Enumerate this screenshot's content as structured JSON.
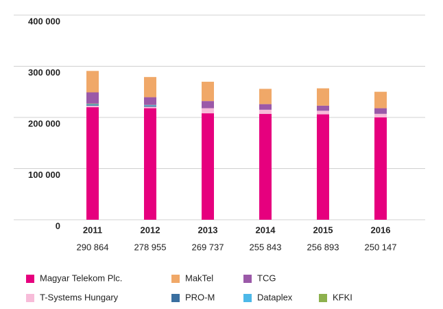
{
  "chart_data": {
    "type": "stacked-bar",
    "categories": [
      "2011",
      "2012",
      "2013",
      "2014",
      "2015",
      "2016"
    ],
    "total_labels": [
      "290 864",
      "278 955",
      "269 737",
      "255 843",
      "256 893",
      "250 147"
    ],
    "series": [
      {
        "name": "Magyar Telekom Plc.",
        "color": "#e6007e",
        "values": [
          220000,
          218000,
          208000,
          207000,
          206000,
          200000
        ]
      },
      {
        "name": "T-Systems Hungary",
        "color": "#f7bcd9",
        "values": [
          3000,
          3000,
          10000,
          8000,
          7000,
          7000
        ]
      },
      {
        "name": "PRO-M",
        "color": "#3a6fa0",
        "values": [
          2000,
          2000,
          0,
          0,
          0,
          0
        ]
      },
      {
        "name": "Dataplex",
        "color": "#4db8e8",
        "values": [
          1000,
          1000,
          0,
          0,
          0,
          0
        ]
      },
      {
        "name": "KFKI",
        "color": "#8db14d",
        "values": [
          1000,
          500,
          0,
          0,
          0,
          0
        ]
      },
      {
        "name": "TCG",
        "color": "#9b59a8",
        "values": [
          22000,
          15000,
          14000,
          11000,
          10000,
          11000
        ]
      },
      {
        "name": "MakTel",
        "color": "#f0a868",
        "values": [
          41864,
          39455,
          37737,
          29843,
          33893,
          32147
        ]
      }
    ],
    "ylim": [
      0,
      400000
    ],
    "yticks": [
      0,
      {
        "value": 100000,
        "label": "100 000"
      },
      {
        "value": 200000,
        "label": "200 000"
      },
      {
        "value": 300000,
        "label": "300 000"
      },
      {
        "value": 400000,
        "label": "400 000"
      }
    ],
    "grid": true
  }
}
